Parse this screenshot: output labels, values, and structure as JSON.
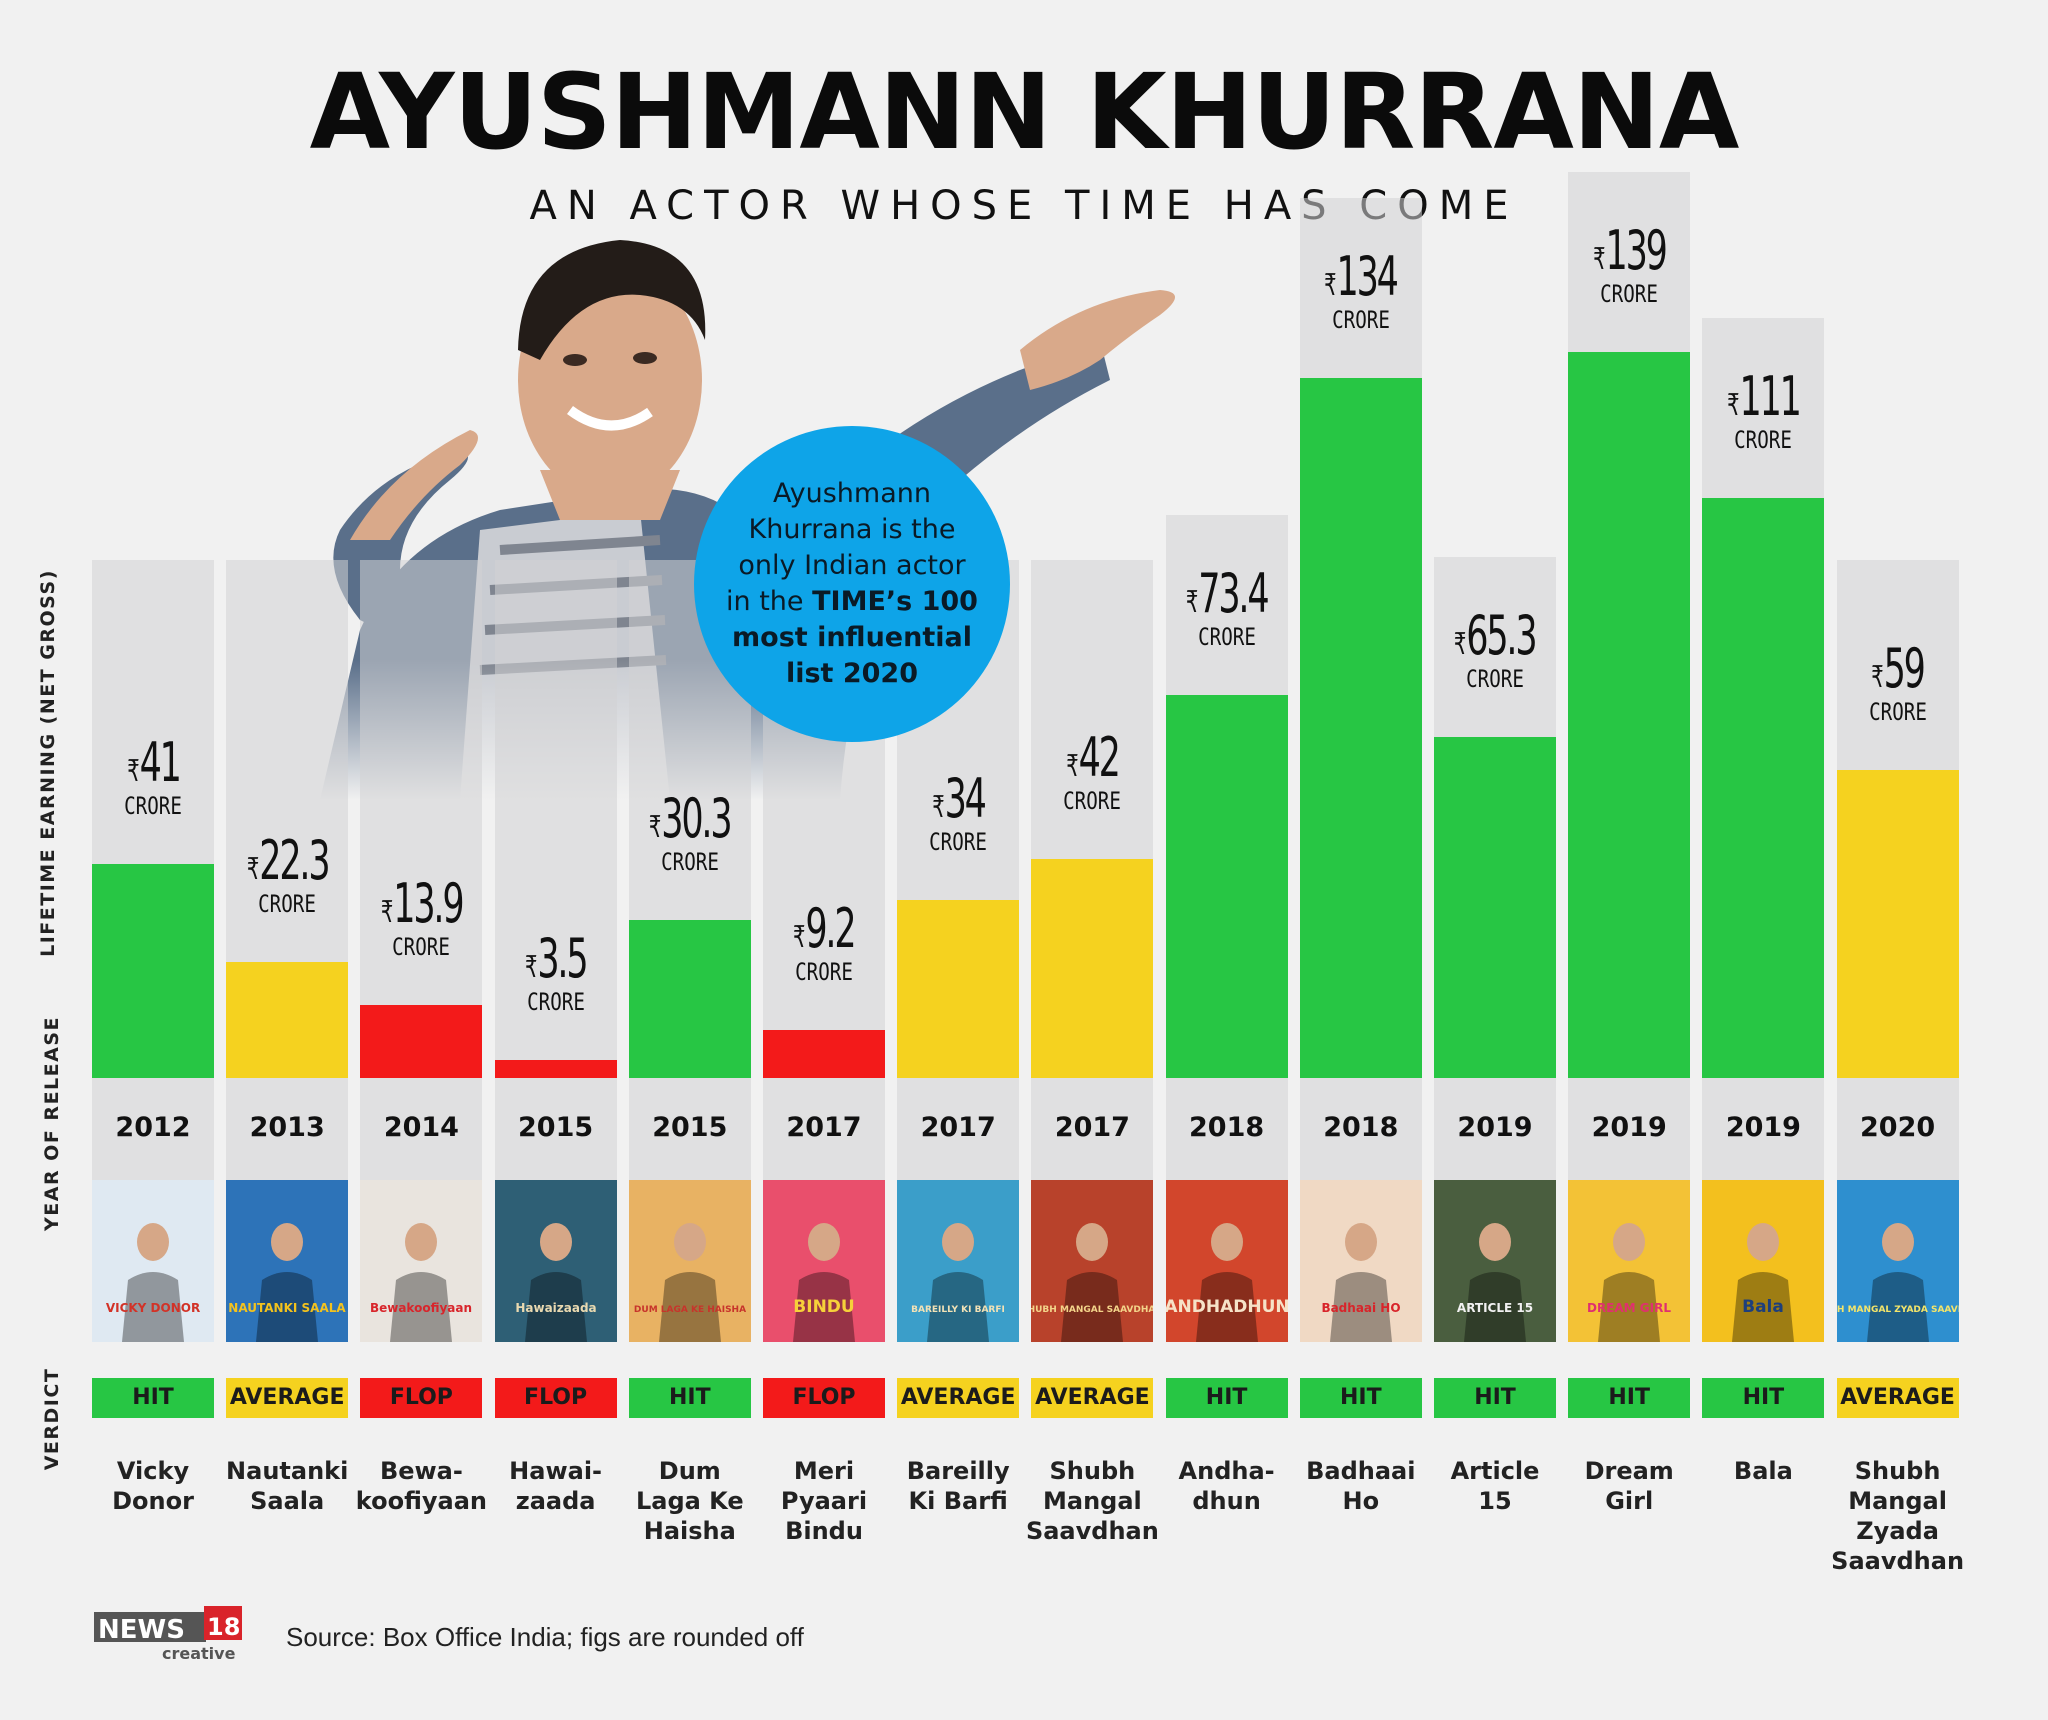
{
  "header": {
    "title": "AYUSHMANN KHURRANA",
    "subtitle": "AN ACTOR WHOSE TIME HAS COME"
  },
  "badge": {
    "text_plain": "Ayushmann Khurrana is the only Indian actor in the",
    "text_bold": "TIME’s 100 most influential list 2020"
  },
  "axis": {
    "y_label": "LIFETIME EARNING (NET GROSS)",
    "year_label": "YEAR OF RELEASE",
    "verdict_label": "VERDICT"
  },
  "currency_symbol": "₹",
  "unit": "CRORE",
  "colors": {
    "hit": "#27c644",
    "average": "#f5d21f",
    "flop": "#f31a1a",
    "badge": "#0ea4e8"
  },
  "chart_data": {
    "type": "bar",
    "categories": [
      "Vicky Donor",
      "Nautanki Saala",
      "Bewakoofiyaan",
      "Hawaizaada",
      "Dum Laga Ke Haisha",
      "Meri Pyaari Bindu",
      "Bareilly Ki Barfi",
      "Shubh Mangal Saavdhan",
      "Andhadhun",
      "Badhaai Ho",
      "Article 15",
      "Dream Girl",
      "Bala",
      "Shubh Mangal Zyada Saavdhan"
    ],
    "values": [
      41,
      22.3,
      13.9,
      3.5,
      30.3,
      9.2,
      34,
      42,
      73.4,
      134,
      65.3,
      139,
      111,
      59
    ],
    "value_labels": [
      "41",
      "22.3",
      "13.9",
      "3.5",
      "30.3",
      "9.2",
      "34",
      "42",
      "73.4",
      "134",
      "65.3",
      "139",
      "111",
      "59"
    ],
    "ylabel": "LIFETIME EARNING (NET GROSS)",
    "ylim": [
      0,
      139
    ]
  },
  "movies": [
    {
      "label": "Vicky\nDonor",
      "year": "2012",
      "verdict": "HIT",
      "poster_text": "VICKY DONOR",
      "poster_bg": "#dfe9f2",
      "poster_fg": "#d23227"
    },
    {
      "label": "Nautanki\nSaala",
      "year": "2013",
      "verdict": "AVERAGE",
      "poster_text": "NAUTANKI SAALA",
      "poster_bg": "#2d73b8",
      "poster_fg": "#f3c21d"
    },
    {
      "label": "Bewa-\nkoofiyaan",
      "year": "2014",
      "verdict": "FLOP",
      "poster_text": "Bewakoofiyaan",
      "poster_bg": "#e9e4de",
      "poster_fg": "#d8252b"
    },
    {
      "label": "Hawai-\nzaada",
      "year": "2015",
      "verdict": "FLOP",
      "poster_text": "Hawaizaada",
      "poster_bg": "#2e5f75",
      "poster_fg": "#e9d9b0"
    },
    {
      "label": "Dum\nLaga Ke\nHaisha",
      "year": "2015",
      "verdict": "HIT",
      "poster_text": "DUM LAGA KE HAISHA",
      "poster_bg": "#e8b263",
      "poster_fg": "#c7342b"
    },
    {
      "label": "Meri\nPyaari\nBindu",
      "year": "2017",
      "verdict": "FLOP",
      "poster_text": "BINDU",
      "poster_bg": "#e94f6c",
      "poster_fg": "#f6d13a"
    },
    {
      "label": "Bareilly\nKi Barfi",
      "year": "2017",
      "verdict": "AVERAGE",
      "poster_text": "BAREILLY KI BARFI",
      "poster_bg": "#3b9ec9",
      "poster_fg": "#f2e2b6"
    },
    {
      "label": "Shubh\nMangal\nSaavdhan",
      "year": "2017",
      "verdict": "AVERAGE",
      "poster_text": "SHUBH MANGAL SAAVDHAN",
      "poster_bg": "#b8422b",
      "poster_fg": "#f3d48a"
    },
    {
      "label": "Andha-\ndhun",
      "year": "2018",
      "verdict": "HIT",
      "poster_text": "ANDHADHUN",
      "poster_bg": "#d2462c",
      "poster_fg": "#f6e3c8"
    },
    {
      "label": "Badhaai\nHo",
      "year": "2018",
      "verdict": "HIT",
      "poster_text": "Badhaai HO",
      "poster_bg": "#f0d9c4",
      "poster_fg": "#d8242a"
    },
    {
      "label": "Article\n15",
      "year": "2019",
      "verdict": "HIT",
      "poster_text": "ARTICLE 15",
      "poster_bg": "#4a5e3f",
      "poster_fg": "#f1f1f1"
    },
    {
      "label": "Dream\nGirl",
      "year": "2019",
      "verdict": "HIT",
      "poster_text": "DREAM GIRL",
      "poster_bg": "#f3c236",
      "poster_fg": "#e0306f"
    },
    {
      "label": "Bala",
      "year": "2019",
      "verdict": "HIT",
      "poster_text": "Bala",
      "poster_bg": "#f3c01e",
      "poster_fg": "#1d3f7c"
    },
    {
      "label": "Shubh\nMangal\nZyada\nSaavdhan",
      "year": "2020",
      "verdict": "AVERAGE",
      "poster_text": "SHUBH MANGAL ZYADA SAAVDHAN",
      "poster_bg": "#2e8fcf",
      "poster_fg": "#f4e56a"
    }
  ],
  "footer": {
    "logo_main": "NEWS",
    "logo_number": "18",
    "logo_sub": "creative",
    "source": "Source: Box Office India; figs are rounded off"
  }
}
